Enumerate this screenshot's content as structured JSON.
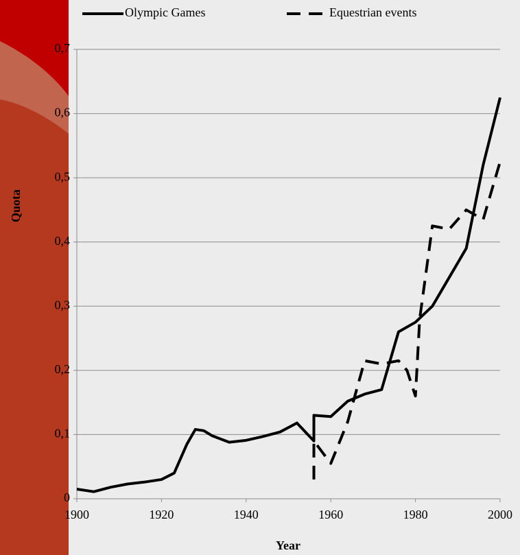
{
  "chart_data": {
    "type": "line",
    "xlabel": "Year",
    "ylabel": "Quota",
    "series": [
      {
        "name": "Olympic Games",
        "color": "#000000",
        "dash": "solid",
        "x": [
          1900,
          1904,
          1908,
          1912,
          1916,
          1920,
          1923,
          1926,
          1928,
          1930,
          1932,
          1936,
          1940,
          1944,
          1948,
          1952,
          1956,
          1956,
          1960,
          1964,
          1968,
          1972,
          1976,
          1980,
          1984,
          1988,
          1992,
          1996,
          2000
        ],
        "values": [
          0.015,
          0.011,
          0.018,
          0.023,
          0.026,
          0.03,
          0.04,
          0.085,
          0.108,
          0.106,
          0.098,
          0.088,
          0.091,
          0.097,
          0.104,
          0.118,
          0.09,
          0.13,
          0.128,
          0.152,
          0.163,
          0.17,
          0.26,
          0.275,
          0.3,
          0.345,
          0.39,
          0.52,
          0.625
        ]
      },
      {
        "name": "Equestrian events",
        "color": "#000000",
        "dash": "dashed",
        "x": [
          1956,
          1956,
          1960,
          1964,
          1968,
          1972,
          1976,
          1978,
          1980,
          1981,
          1984,
          1988,
          1992,
          1996,
          2000
        ],
        "values": [
          0.03,
          0.09,
          0.055,
          0.12,
          0.215,
          0.21,
          0.215,
          0.2,
          0.16,
          0.28,
          0.425,
          0.42,
          0.45,
          0.435,
          0.525
        ]
      }
    ],
    "xlim": [
      1900,
      2000
    ],
    "xticks": [
      1900,
      1920,
      1940,
      1960,
      1980,
      2000
    ],
    "ylim": [
      0,
      0.7
    ],
    "yticks": [
      0,
      {
        "value": 0.1,
        "label": "0,1"
      },
      {
        "value": 0.2,
        "label": "0,2"
      },
      {
        "value": 0.3,
        "label": "0,3"
      },
      {
        "value": 0.4,
        "label": "0,4"
      },
      {
        "value": 0.5,
        "label": "0,5"
      },
      {
        "value": 0.6,
        "label": "0,6"
      },
      {
        "value": 0.7,
        "label": "0,7"
      }
    ],
    "grid": true,
    "legend": "top"
  }
}
